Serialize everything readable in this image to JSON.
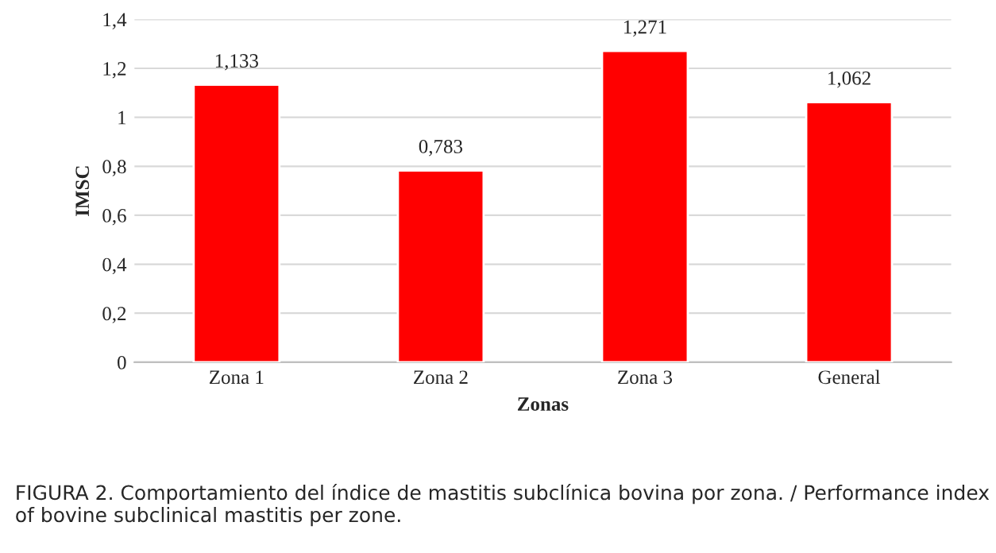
{
  "chart_data": {
    "type": "bar",
    "xlabel": "Zonas",
    "ylabel": "IMSC",
    "categories": [
      "Zona 1",
      "Zona 2",
      "Zona 3",
      "General"
    ],
    "values": [
      1.133,
      0.783,
      1.271,
      1.062
    ],
    "value_labels": [
      "1,133",
      "0,783",
      "1,271",
      "1,062"
    ],
    "color": "#ff0000",
    "ylim": [
      0,
      1.4
    ],
    "yticks": [
      0,
      {
        "value": 0.2,
        "label": "0,2"
      },
      {
        "value": 0.4,
        "label": "0,4"
      },
      {
        "value": 0.6,
        "label": "0,6"
      },
      {
        "value": 0.8,
        "label": "0,8"
      },
      1,
      {
        "value": 1.2,
        "label": "1,2"
      },
      {
        "value": 1.4,
        "label": "1,4"
      }
    ],
    "grid": "y",
    "annotations": [
      "FIGURA 2. Comportamiento del índice de mastitis subclínica bovina por zona. / Performance index of bovine subclinical mastitis per zone."
    ]
  }
}
